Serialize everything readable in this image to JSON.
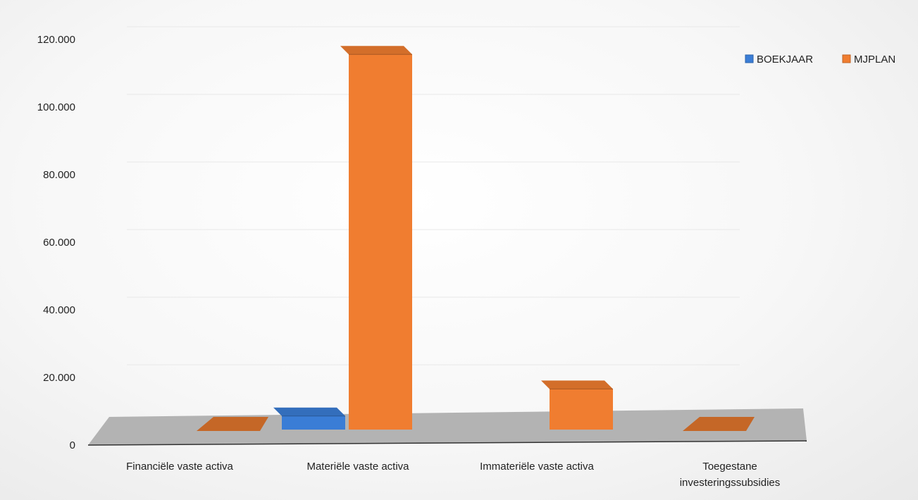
{
  "chart_data": {
    "type": "bar",
    "style": "3d-clustered-column",
    "categories": [
      [
        "Financiële vaste activa"
      ],
      [
        "Materiële vaste activa"
      ],
      [
        "Immateriële vaste activa"
      ],
      [
        "Toegestane",
        "investeringssubsidies"
      ]
    ],
    "series": [
      {
        "name": "BOEKJAAR",
        "color": "#3a7dd6",
        "values": [
          0,
          4000,
          0,
          0
        ]
      },
      {
        "name": "MJPLAN",
        "color": "#f07d30",
        "values": [
          0,
          111000,
          12000,
          0
        ]
      }
    ],
    "ylim": [
      0,
      120000
    ],
    "yticks": [
      0,
      20000,
      40000,
      60000,
      80000,
      100000,
      120000
    ],
    "ytick_labels": [
      "0",
      "20.000",
      "40.000",
      "60.000",
      "80.000",
      "100.000",
      "120.000"
    ],
    "grid": true,
    "legend_position": "top-right",
    "title": "",
    "xlabel": "",
    "ylabel": ""
  }
}
